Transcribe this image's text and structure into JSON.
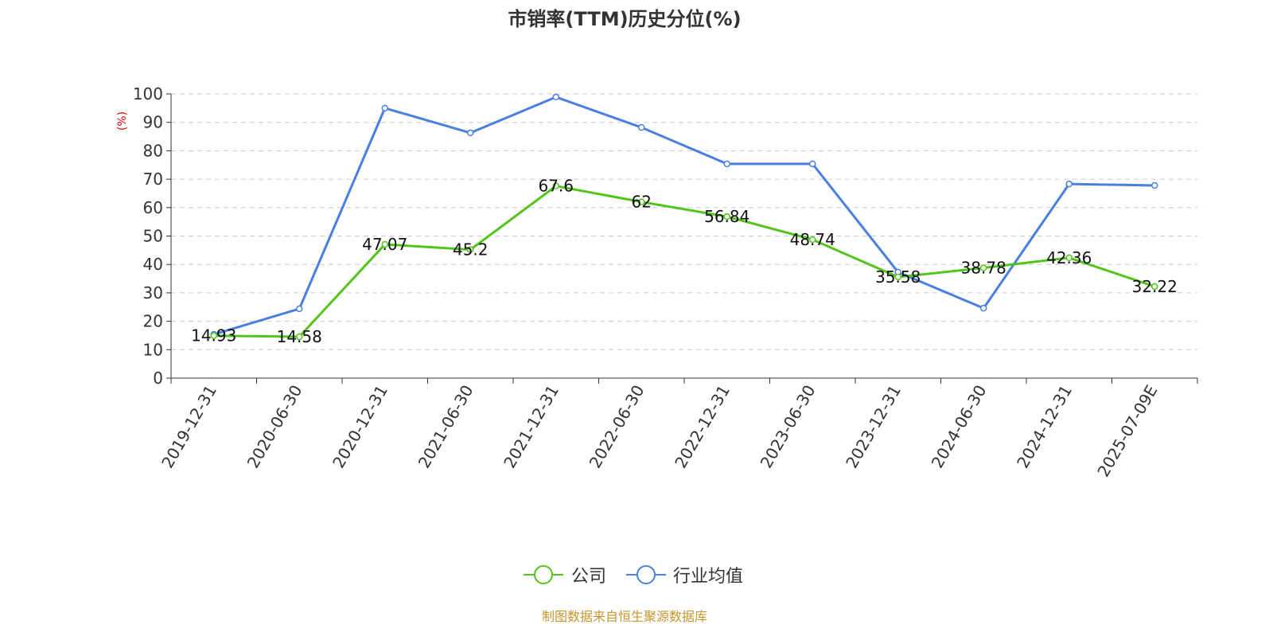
{
  "chart_data": {
    "type": "line",
    "title": "市销率(TTM)历史分位(%)",
    "ylabel": "(%)",
    "xlabel": "",
    "ylim": [
      0,
      100
    ],
    "yticks": [
      0,
      10,
      20,
      30,
      40,
      50,
      60,
      70,
      80,
      90,
      100
    ],
    "grid": true,
    "legend_position": "bottom-center",
    "categories": [
      "2019-12-31",
      "2020-06-30",
      "2020-12-31",
      "2021-06-30",
      "2021-12-31",
      "2022-06-30",
      "2022-12-31",
      "2023-06-30",
      "2023-12-31",
      "2024-06-30",
      "2024-12-31",
      "2025-07-09E"
    ],
    "series": [
      {
        "name": "公司",
        "color": "#52c41a",
        "values": [
          14.93,
          14.58,
          47.07,
          45.2,
          67.6,
          62,
          56.84,
          48.74,
          35.58,
          38.78,
          42.36,
          32.22
        ],
        "labels": [
          "14.93",
          "14.58",
          "47.07",
          "45.2",
          "67.6",
          "62",
          "56.84",
          "48.74",
          "35.58",
          "38.78",
          "42.36",
          "32.22"
        ]
      },
      {
        "name": "行业均值",
        "color": "#4a7fe0",
        "values": [
          15.4,
          24.4,
          95,
          86.3,
          98.9,
          88.2,
          75.4,
          75.4,
          37.3,
          24.6,
          68.3,
          67.8
        ]
      }
    ],
    "source": "制图数据来自恒生聚源数据库"
  }
}
